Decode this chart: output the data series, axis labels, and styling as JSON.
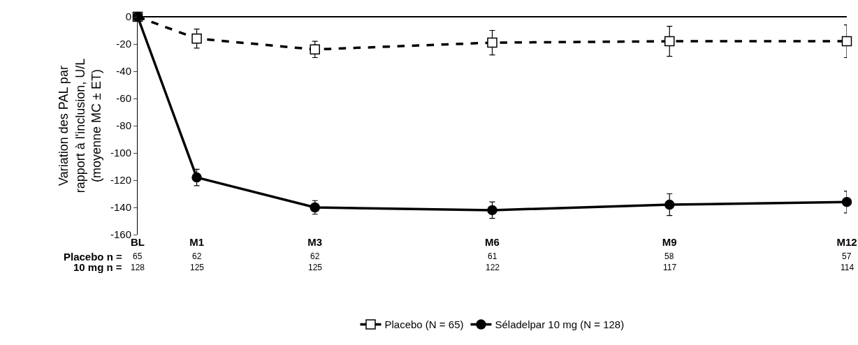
{
  "chart_data": {
    "type": "line",
    "ylabel": "Variation des PAL par rapport à l'inclusion, U/L (moyenne MC ± ET)",
    "categories": [
      "BL",
      "M1",
      null,
      "M3",
      null,
      null,
      "M6",
      null,
      null,
      "M9",
      null,
      null,
      "M12"
    ],
    "ylim": [
      -160,
      0
    ],
    "yticks": [
      -160,
      -140,
      -120,
      -100,
      -80,
      -60,
      -40,
      -20,
      0
    ],
    "series": [
      {
        "name": "Placebo (N = 65)",
        "color": "#000000",
        "marker": "square",
        "line_style": "dashed",
        "values": [
          0,
          -16,
          null,
          -24,
          null,
          null,
          -19,
          null,
          null,
          -18,
          null,
          null,
          -18
        ],
        "errors": [
          null,
          7,
          null,
          6,
          null,
          null,
          9,
          null,
          null,
          11,
          null,
          null,
          12
        ]
      },
      {
        "name": "Séladelpar 10 mg (N = 128)",
        "color": "#000000",
        "marker": "circle",
        "line_style": "solid",
        "values": [
          0,
          -118,
          null,
          -140,
          null,
          null,
          -142,
          null,
          null,
          -138,
          null,
          null,
          -136
        ],
        "errors": [
          null,
          6,
          null,
          5,
          null,
          null,
          6,
          null,
          null,
          8,
          null,
          null,
          8
        ]
      }
    ],
    "annotations": [
      "Placebo n =",
      "65",
      "62",
      "62",
      "61",
      "58",
      "57",
      "10 mg n =",
      "128",
      "125",
      "125",
      "122",
      "117",
      "114"
    ],
    "grid": false,
    "legend": "bottom"
  }
}
